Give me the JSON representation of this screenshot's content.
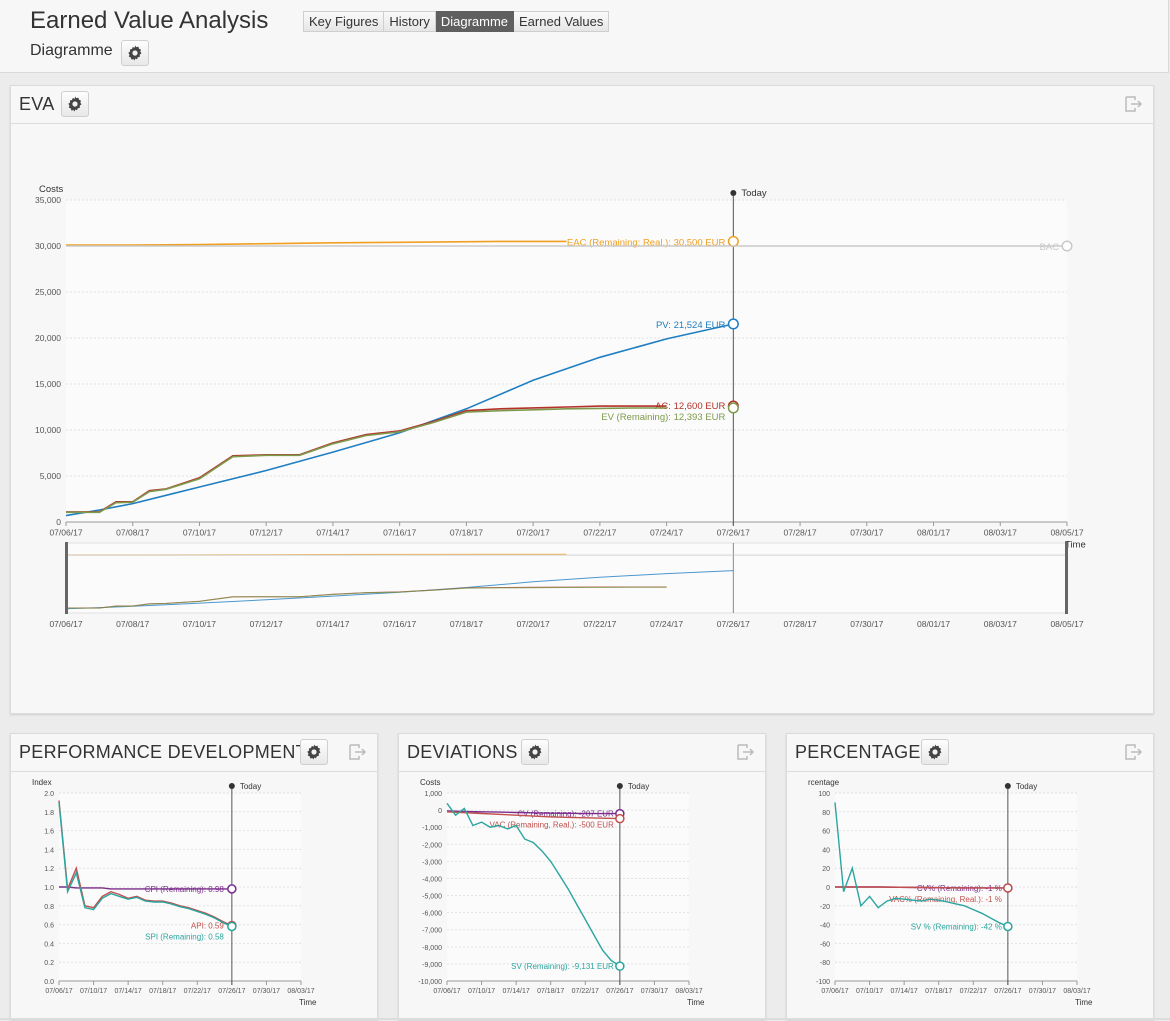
{
  "app": {
    "title": "Earned Value Analysis",
    "subtitle": "Diagramme"
  },
  "tabs": [
    {
      "label": "Key Figures",
      "active": false
    },
    {
      "label": "History",
      "active": false
    },
    {
      "label": "Diagramme",
      "active": true
    },
    {
      "label": "Earned Values",
      "active": false
    }
  ],
  "eva": {
    "title": "EVA",
    "today_label": "Today",
    "chart_data": {
      "type": "line",
      "ylabel": "Costs",
      "xlabel": "Time",
      "ylim": [
        0,
        35000
      ],
      "yticks": [
        "0",
        "5,000",
        "10,000",
        "15,000",
        "20,000",
        "25,000",
        "30,000",
        "35,000"
      ],
      "xticks": [
        "07/06/17",
        "07/08/17",
        "07/10/17",
        "07/12/17",
        "07/14/17",
        "07/16/17",
        "07/18/17",
        "07/20/17",
        "07/22/17",
        "07/24/17",
        "07/26/17",
        "07/28/17",
        "07/30/17",
        "08/01/17",
        "08/03/17",
        "08/05/17"
      ],
      "today": "07/26/17",
      "grid": true,
      "series": [
        {
          "name": "EAC (Remaining; Real.)",
          "label": "EAC (Remaining; Real.): 30,500 EUR",
          "color": "#f0a020",
          "x": [
            0,
            2,
            4,
            6,
            8,
            10,
            13,
            15
          ],
          "values": [
            30100,
            30100,
            30150,
            30250,
            30350,
            30400,
            30500,
            30500
          ]
        },
        {
          "name": "BAC",
          "label": "BAC",
          "color": "#c9c9c9",
          "x": [
            0,
            30
          ],
          "values": [
            30000,
            30000
          ]
        },
        {
          "name": "PV",
          "label": "PV: 21,524 EUR",
          "color": "#1f7ec2",
          "x": [
            0,
            1,
            2,
            3,
            4,
            6,
            8,
            10,
            12,
            14,
            16,
            18,
            20
          ],
          "values": [
            700,
            1300,
            2000,
            2900,
            3800,
            5600,
            7600,
            9700,
            12300,
            15400,
            17900,
            19900,
            21524
          ]
        },
        {
          "name": "AC",
          "label": "AC: 12,600 EUR",
          "color": "#b3322a",
          "x": [
            0,
            1,
            1.5,
            2,
            2.5,
            3,
            4,
            5,
            6,
            7,
            8,
            9,
            10,
            11,
            12,
            13,
            14,
            15,
            16,
            17,
            18,
            17.6
          ],
          "values": [
            1100,
            1100,
            2200,
            2200,
            3400,
            3600,
            4800,
            7200,
            7300,
            7300,
            8600,
            9500,
            9900,
            10900,
            12100,
            12300,
            12400,
            12500,
            12600,
            12600,
            12600,
            12600
          ]
        },
        {
          "name": "EV (Remaining)",
          "label": "EV (Remaining): 12,393 EUR",
          "color": "#7d9a4c",
          "x": [
            0,
            1,
            1.5,
            2,
            2.5,
            3,
            4,
            5,
            6,
            7,
            8,
            9,
            10,
            11,
            12,
            13,
            14,
            15,
            16,
            17,
            18,
            17.6
          ],
          "values": [
            1050,
            1050,
            2100,
            2150,
            3300,
            3550,
            4700,
            7100,
            7250,
            7250,
            8500,
            9400,
            9800,
            10800,
            11950,
            12100,
            12200,
            12300,
            12350,
            12393,
            12393,
            12393
          ]
        }
      ]
    }
  },
  "perf": {
    "title": "PERFORMANCE DEVELOPMENT",
    "today_label": "Today",
    "chart_data": {
      "type": "line",
      "ylabel": "Index",
      "xlabel": "Time",
      "ylim": [
        0,
        2.0
      ],
      "yticks": [
        "0.0",
        "0.2",
        "0.4",
        "0.6",
        "0.8",
        "1.0",
        "1.2",
        "1.4",
        "1.6",
        "1.8",
        "2.0"
      ],
      "xticks": [
        "07/06/17",
        "07/10/17",
        "07/14/17",
        "07/18/17",
        "07/22/17",
        "07/26/17",
        "07/30/17",
        "08/03/17"
      ],
      "today": "07/26/17",
      "series": [
        {
          "name": "CPI (Remaining)",
          "label": "CPI (Remaining): 0.98",
          "color": "#7b2d8b",
          "x": [
            0,
            1,
            2,
            3,
            4,
            5,
            6,
            7,
            8,
            9,
            10,
            11,
            12,
            13,
            14,
            15,
            16,
            17,
            18,
            19,
            20
          ],
          "values": [
            1.0,
            1.0,
            0.99,
            0.99,
            0.99,
            0.99,
            0.98,
            0.98,
            0.98,
            0.98,
            0.98,
            0.98,
            0.98,
            0.98,
            0.98,
            0.98,
            0.98,
            0.98,
            0.98,
            0.98,
            0.98
          ]
        },
        {
          "name": "API",
          "label": "API: 0.59",
          "color": "#c0504d",
          "x": [
            0,
            1,
            2,
            3,
            4,
            5,
            6,
            7,
            8,
            9,
            10,
            11,
            12,
            13,
            14,
            15,
            16,
            17,
            18,
            19,
            20
          ],
          "values": [
            1.92,
            0.98,
            1.2,
            0.8,
            0.78,
            0.9,
            0.95,
            0.92,
            0.88,
            0.9,
            0.86,
            0.85,
            0.85,
            0.83,
            0.8,
            0.78,
            0.75,
            0.72,
            0.68,
            0.63,
            0.59
          ]
        },
        {
          "name": "SPI (Remaining)",
          "label": "SPI (Remaining): 0.58",
          "color": "#2aa59f",
          "x": [
            0,
            1,
            2,
            3,
            4,
            5,
            6,
            7,
            8,
            9,
            10,
            11,
            12,
            13,
            14,
            15,
            16,
            17,
            18,
            19,
            20
          ],
          "values": [
            1.9,
            0.95,
            1.15,
            0.78,
            0.76,
            0.88,
            0.93,
            0.9,
            0.87,
            0.89,
            0.85,
            0.84,
            0.84,
            0.82,
            0.79,
            0.77,
            0.74,
            0.71,
            0.67,
            0.62,
            0.58
          ]
        }
      ]
    }
  },
  "dev": {
    "title": "DEVIATIONS",
    "today_label": "Today",
    "chart_data": {
      "type": "line",
      "ylabel": "Costs",
      "xlabel": "Time",
      "ylim": [
        -10000,
        1000
      ],
      "yticks": [
        "-10,000",
        "-9,000",
        "-8,000",
        "-7,000",
        "-6,000",
        "-5,000",
        "-4,000",
        "-3,000",
        "-2,000",
        "-1,000",
        "0",
        "1,000"
      ],
      "xticks": [
        "07/06/17",
        "07/10/17",
        "07/14/17",
        "07/18/17",
        "07/22/17",
        "07/26/17",
        "07/30/17",
        "08/03/17"
      ],
      "today": "07/26/17",
      "series": [
        {
          "name": "CV (Remaining)",
          "label": "CV (Remaining): -207 EUR",
          "color": "#7b2d8b",
          "x": [
            0,
            2,
            4,
            6,
            8,
            10,
            12,
            14,
            16,
            18,
            20
          ],
          "values": [
            -50,
            -80,
            -100,
            -120,
            -140,
            -160,
            -180,
            -190,
            -200,
            -205,
            -207
          ]
        },
        {
          "name": "VAC (Remaining, Real.)",
          "label": "VAC (Remaining, Real.): -500 EUR",
          "color": "#c0504d",
          "x": [
            0,
            4,
            8,
            12,
            16,
            20
          ],
          "values": [
            -100,
            -200,
            -300,
            -400,
            -450,
            -500
          ]
        },
        {
          "name": "SV (Remaining)",
          "label": "SV (Remaining): -9,131 EUR",
          "color": "#2aa59f",
          "x": [
            0,
            1,
            2,
            3,
            4,
            5,
            6,
            7,
            8,
            9,
            10,
            11,
            12,
            13,
            14,
            15,
            16,
            17,
            18,
            19,
            20
          ],
          "values": [
            400,
            -300,
            100,
            -900,
            -700,
            -1000,
            -900,
            -1100,
            -900,
            -1700,
            -1900,
            -2400,
            -3000,
            -3800,
            -4600,
            -5500,
            -6400,
            -7300,
            -8200,
            -8800,
            -9131
          ]
        }
      ]
    }
  },
  "pct": {
    "title": "PERCENTAGE",
    "today_label": "Today",
    "chart_data": {
      "type": "line",
      "ylabel": "rcentage",
      "xlabel": "Time",
      "ylim": [
        -100,
        100
      ],
      "yticks": [
        "-100",
        "-80",
        "-60",
        "-40",
        "-20",
        "0",
        "20",
        "40",
        "60",
        "80",
        "100"
      ],
      "xticks": [
        "07/06/17",
        "07/10/17",
        "07/14/17",
        "07/18/17",
        "07/22/17",
        "07/26/17",
        "07/30/17",
        "08/03/17"
      ],
      "today": "07/26/17",
      "series": [
        {
          "name": "CV% (Remaining)",
          "label": "CV% (Remaining): -1 %",
          "color": "#7b2d8b",
          "x": [
            0,
            5,
            10,
            15,
            20
          ],
          "values": [
            0,
            0,
            -0.5,
            -1,
            -1
          ]
        },
        {
          "name": "VAC% (Remaining, Real.)",
          "label": "VAC% (Remaining, Real.): -1 %",
          "color": "#c0504d",
          "x": [
            0,
            5,
            10,
            15,
            20
          ],
          "values": [
            0,
            0,
            -0.5,
            -1,
            -1
          ]
        },
        {
          "name": "SV % (Remaining)",
          "label": "SV % (Remaining): -42 %",
          "color": "#2aa59f",
          "x": [
            0,
            1,
            2,
            3,
            4,
            5,
            6,
            7,
            8,
            9,
            10,
            11,
            12,
            13,
            14,
            15,
            16,
            17,
            18,
            19,
            20
          ],
          "values": [
            90,
            -5,
            20,
            -20,
            -10,
            -22,
            -15,
            -12,
            -13,
            -14,
            -15,
            -13,
            -14,
            -16,
            -18,
            -20,
            -24,
            -28,
            -33,
            -38,
            -42
          ]
        }
      ]
    }
  }
}
